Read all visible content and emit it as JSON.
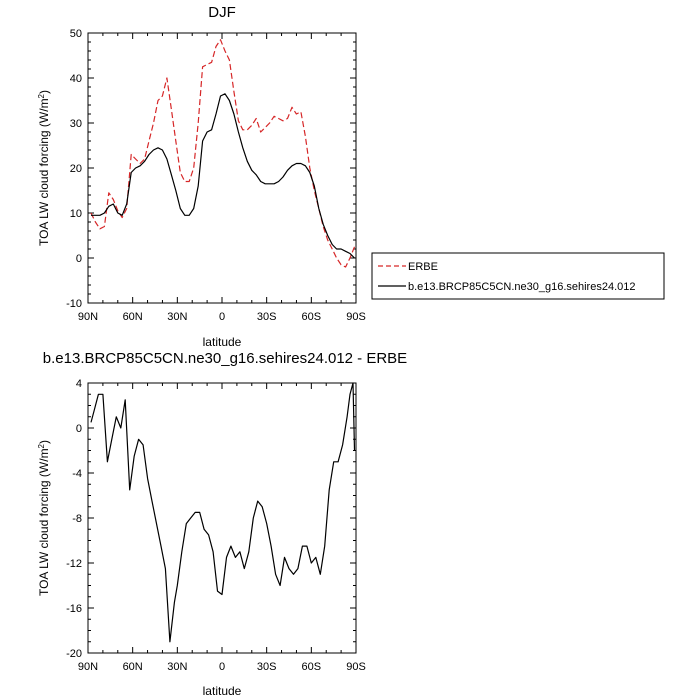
{
  "chart_data": [
    {
      "type": "line",
      "title": "DJF",
      "xlabel": "latitude",
      "ylabel": "TOA LW cloud forcing (W/m",
      "ylabel_sup": "2",
      "ylabel_close": ")",
      "xlim": [
        90,
        -90
      ],
      "ylim": [
        -10,
        50
      ],
      "xticks": [
        90,
        60,
        30,
        0,
        -30,
        -60,
        -90
      ],
      "xtick_labels": [
        "90N",
        "60N",
        "30N",
        "0",
        "30S",
        "60S",
        "90S"
      ],
      "yticks": [
        -10,
        0,
        10,
        20,
        30,
        40,
        50
      ],
      "ytick_labels": [
        "-10",
        "0",
        "10",
        "20",
        "30",
        "40",
        "50"
      ],
      "legend": {
        "placement": "right-bottom",
        "entries": [
          "ERBE",
          "b.e13.BRCP85C5CN.ne30_g16.sehires24.012"
        ]
      },
      "series": [
        {
          "name": "ERBE",
          "color": "#d62728",
          "dashed": true,
          "x": [
            88,
            85,
            82,
            79,
            76,
            73,
            70,
            67,
            64,
            61,
            58,
            55,
            52,
            49,
            46,
            43,
            40,
            37,
            34,
            31,
            28,
            25,
            22,
            19,
            16,
            13,
            10,
            7,
            4,
            1,
            -2,
            -5,
            -8,
            -11,
            -14,
            -17,
            -20,
            -23,
            -26,
            -29,
            -32,
            -35,
            -38,
            -41,
            -44,
            -47,
            -50,
            -53,
            -56,
            -59,
            -62,
            -65,
            -68,
            -71,
            -74,
            -77,
            -80,
            -83,
            -86,
            -89
          ],
          "y": [
            10,
            8,
            6.5,
            7,
            14.5,
            13,
            10.5,
            9,
            11,
            23,
            22,
            21,
            22,
            26,
            30,
            35,
            36,
            40,
            33,
            26,
            19,
            17,
            17,
            20,
            30,
            42.5,
            43,
            43.5,
            47,
            48.5,
            46,
            44,
            37,
            30.5,
            28.5,
            28.5,
            29.5,
            31,
            28,
            29,
            30,
            31.5,
            31,
            30.5,
            31,
            33.5,
            32,
            32.5,
            27,
            20,
            15,
            11,
            7,
            4,
            2,
            0,
            -1.5,
            -2,
            0,
            2.5
          ]
        },
        {
          "name": "b.e13.BRCP85C5CN.ne30_g16.sehires24.012",
          "color": "#000000",
          "dashed": false,
          "x": [
            88,
            85,
            82,
            79,
            76,
            73,
            70,
            67,
            64,
            61,
            58,
            55,
            52,
            49,
            46,
            43,
            40,
            37,
            34,
            31,
            28,
            25,
            22,
            19,
            16,
            13,
            10,
            7,
            4,
            1,
            -2,
            -5,
            -8,
            -11,
            -14,
            -17,
            -20,
            -23,
            -26,
            -29,
            -32,
            -35,
            -38,
            -41,
            -44,
            -47,
            -50,
            -53,
            -56,
            -59,
            -62,
            -65,
            -68,
            -71,
            -74,
            -77,
            -80,
            -83,
            -86,
            -89
          ],
          "y": [
            9.5,
            9.5,
            9.5,
            10,
            11.5,
            12,
            10,
            9.5,
            12,
            19,
            20,
            20.5,
            21.5,
            23,
            24,
            24.5,
            24,
            22,
            18.5,
            15,
            11,
            9.5,
            9.5,
            11,
            16,
            26,
            28,
            28.5,
            32,
            36,
            36.5,
            35,
            32,
            28,
            24.5,
            21.5,
            19.5,
            18.5,
            17,
            16.5,
            16.5,
            16.5,
            17,
            18,
            19.5,
            20.5,
            21,
            21,
            20.5,
            19,
            16,
            11,
            7.5,
            5,
            3,
            2,
            2,
            1.5,
            1,
            0
          ]
        }
      ]
    },
    {
      "type": "line",
      "title": "b.e13.BRCP85C5CN.ne30_g16.sehires24.012 - ERBE",
      "xlabel": "latitude",
      "ylabel": "TOA LW cloud forcing (W/m",
      "ylabel_sup": "2",
      "ylabel_close": ")",
      "xlim": [
        90,
        -90
      ],
      "ylim": [
        -20,
        4
      ],
      "xticks": [
        90,
        60,
        30,
        0,
        -30,
        -60,
        -90
      ],
      "xtick_labels": [
        "90N",
        "60N",
        "30N",
        "0",
        "30S",
        "60S",
        "90S"
      ],
      "yticks": [
        -20,
        -16,
        -12,
        -8,
        -4,
        0,
        4
      ],
      "ytick_labels": [
        "-20",
        "-16",
        "-12",
        "-8",
        "-4",
        "0",
        "4"
      ],
      "series": [
        {
          "name": "b.e13.BRCP85C5CN.ne30_g16.sehires24.012 - ERBE",
          "color": "#000000",
          "dashed": false,
          "x": [
            88,
            86,
            83,
            80,
            77,
            74,
            71,
            68,
            65,
            62,
            59,
            56,
            53,
            50,
            47,
            44,
            41,
            38,
            35,
            32,
            30,
            27,
            24,
            21,
            18,
            15,
            12,
            9,
            6,
            3,
            0,
            -3,
            -6,
            -9,
            -12,
            -15,
            -18,
            -21,
            -24,
            -27,
            -30,
            -33,
            -36,
            -39,
            -42,
            -45,
            -48,
            -51,
            -54,
            -57,
            -60,
            -63,
            -66,
            -69,
            -72,
            -75,
            -78,
            -81,
            -84,
            -86,
            -88,
            -89
          ],
          "y": [
            0.5,
            1.5,
            3,
            3,
            -3,
            -1,
            1,
            0,
            2.5,
            -5.5,
            -2.5,
            -1,
            -1.5,
            -4.5,
            -6.5,
            -8.5,
            -10.5,
            -12.5,
            -19,
            -15.5,
            -14,
            -11,
            -8.5,
            -8,
            -7.5,
            -7.5,
            -9,
            -9.5,
            -11,
            -14.5,
            -14.8,
            -11.5,
            -10.5,
            -11.5,
            -11,
            -12.5,
            -11,
            -8,
            -6.5,
            -7,
            -8.5,
            -10.5,
            -13,
            -14,
            -11.5,
            -12.5,
            -13,
            -12.5,
            -10.5,
            -10.5,
            -12,
            -11.5,
            -13,
            -10.5,
            -5.5,
            -3,
            -3,
            -1.5,
            1,
            3,
            4,
            -2
          ]
        }
      ]
    }
  ]
}
